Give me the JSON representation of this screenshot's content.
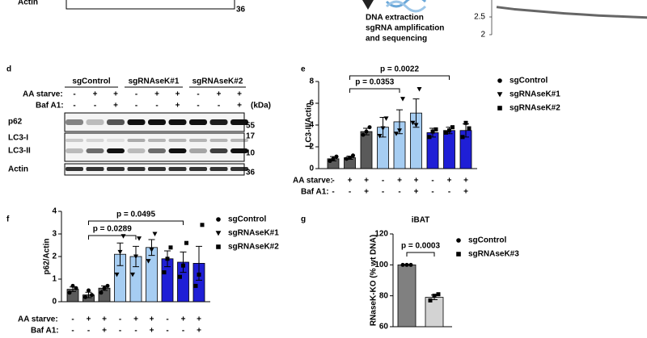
{
  "figure": {
    "panel_labels": [
      "d",
      "e",
      "f",
      "g"
    ],
    "top_blot": {
      "label": "Actin",
      "marker": "36"
    },
    "diagram": [
      "DNA extraction",
      "sgRNA amplification",
      "and sequencing"
    ],
    "blot_d": {
      "groups": [
        "sgControl",
        "sgRNAseK#1",
        "sgRNAseK#2"
      ],
      "conditions": [
        {
          "label": "AA  starve:",
          "signs": [
            "-",
            "+",
            "+",
            "-",
            "+",
            "+",
            "-",
            "+",
            "+"
          ]
        },
        {
          "label": "Baf A1:",
          "signs": [
            "-",
            "-",
            "+",
            "-",
            "-",
            "+",
            "-",
            "-",
            "+"
          ]
        }
      ],
      "unit": "(kDa)",
      "rows": [
        "p62",
        "LC3-I",
        "LC3-II",
        "Actin"
      ],
      "markers": [
        "55",
        "17",
        "10",
        "36"
      ]
    }
  },
  "chart_data": [
    {
      "type": "bar",
      "ylabel": "LC3-II/Actin",
      "ylim": [
        0,
        8
      ],
      "yticks": [
        0,
        2,
        4,
        6,
        8
      ],
      "series": [
        {
          "name": "sgControl",
          "color": "#5a5a5a",
          "marker": "circle",
          "values": [
            0.9,
            1.0,
            3.4
          ],
          "errors": [
            0.2,
            0.15,
            0.3
          ],
          "points": [
            [
              0.7,
              1.1,
              0.9
            ],
            [
              0.9,
              1.2,
              1.0
            ],
            [
              3.1,
              3.8,
              3.4
            ]
          ]
        },
        {
          "name": "sgRNAseK#1",
          "color": "#a6cdf2",
          "marker": "triangle",
          "values": [
            3.8,
            4.3,
            5.1
          ],
          "errors": [
            0.9,
            1.1,
            1.3
          ],
          "points": [
            [
              3.0,
              4.6,
              3.7
            ],
            [
              3.2,
              6.4,
              3.5
            ],
            [
              4.2,
              7.3,
              4.0
            ]
          ]
        },
        {
          "name": "sgRNAseK#2",
          "color": "#1f1fd6",
          "marker": "square",
          "values": [
            3.3,
            3.5,
            3.5
          ],
          "errors": [
            0.4,
            0.3,
            0.6
          ],
          "points": [
            [
              2.9,
              3.6,
              3.4
            ],
            [
              3.3,
              3.8,
              3.5
            ],
            [
              2.9,
              3.7,
              4.2
            ]
          ]
        }
      ],
      "annotations": [
        "p = 0.0353",
        "p = 0.0022"
      ],
      "conditions": [
        {
          "label": "AA  starve:",
          "signs": [
            "-",
            "+",
            "+",
            "-",
            "+",
            "+",
            "-",
            "+",
            "+"
          ]
        },
        {
          "label": "Baf A1:",
          "signs": [
            "-",
            "-",
            "+",
            "-",
            "-",
            "+",
            "-",
            "-",
            "+"
          ]
        }
      ]
    },
    {
      "type": "bar",
      "ylabel": "p62/Actin",
      "ylim": [
        0,
        4
      ],
      "yticks": [
        0,
        1,
        2,
        3,
        4
      ],
      "series": [
        {
          "name": "sgControl",
          "color": "#5a5a5a",
          "marker": "circle",
          "values": [
            0.55,
            0.3,
            0.6
          ],
          "errors": [
            0.1,
            0.12,
            0.1
          ],
          "points": [
            [
              0.4,
              0.6,
              0.7
            ],
            [
              0.2,
              0.3,
              0.5
            ],
            [
              0.4,
              0.7,
              0.6
            ]
          ]
        },
        {
          "name": "sgRNAseK#1",
          "color": "#a6cdf2",
          "marker": "triangle",
          "values": [
            2.1,
            2.0,
            2.4
          ],
          "errors": [
            0.5,
            0.45,
            0.35
          ],
          "points": [
            [
              1.2,
              2.9,
              2.2
            ],
            [
              1.2,
              2.8,
              2.0
            ],
            [
              1.8,
              3.0,
              2.3
            ]
          ]
        },
        {
          "name": "sgRNAseK#2",
          "color": "#1f1fd6",
          "marker": "square",
          "values": [
            1.9,
            1.75,
            1.7
          ],
          "errors": [
            0.35,
            0.45,
            0.75
          ],
          "points": [
            [
              1.3,
              2.4,
              1.9
            ],
            [
              1.1,
              2.6,
              1.6
            ],
            [
              0.7,
              3.4,
              1.2
            ]
          ]
        }
      ],
      "annotations": [
        "p = 0.0289",
        "p = 0.0495"
      ],
      "conditions": [
        {
          "label": "AA  starve:",
          "signs": [
            "-",
            "+",
            "+",
            "-",
            "+",
            "+",
            "-",
            "+",
            "+"
          ]
        },
        {
          "label": "Baf A1:",
          "signs": [
            "-",
            "-",
            "+",
            "-",
            "-",
            "+",
            "-",
            "-",
            "+"
          ]
        }
      ]
    },
    {
      "type": "bar",
      "title": "iBAT",
      "ylabel": "RNaseK-KO (% wt DNA)",
      "ylim": [
        60,
        120
      ],
      "yticks": [
        60,
        80,
        100,
        120
      ],
      "series": [
        {
          "name": "sgControl",
          "color": "#808080",
          "marker": "circle",
          "values": [
            100
          ],
          "errors": [
            0.3
          ],
          "points": [
            [
              100,
              100,
              100
            ]
          ]
        },
        {
          "name": "sgRNAseK#3",
          "color": "#d3d3d3",
          "marker": "square",
          "values": [
            79
          ],
          "errors": [
            1.5
          ],
          "points": [
            [
              77,
              80,
              81
            ]
          ]
        }
      ],
      "annotations": [
        "p = 0.0003"
      ]
    },
    {
      "type": "line",
      "ylim": [
        2,
        2.8
      ],
      "yticks": [
        2,
        2.5
      ],
      "color": "#666666",
      "values": [
        2.78,
        2.72,
        2.68,
        2.64,
        2.6,
        2.57,
        2.54,
        2.52,
        2.5,
        2.48
      ]
    }
  ]
}
